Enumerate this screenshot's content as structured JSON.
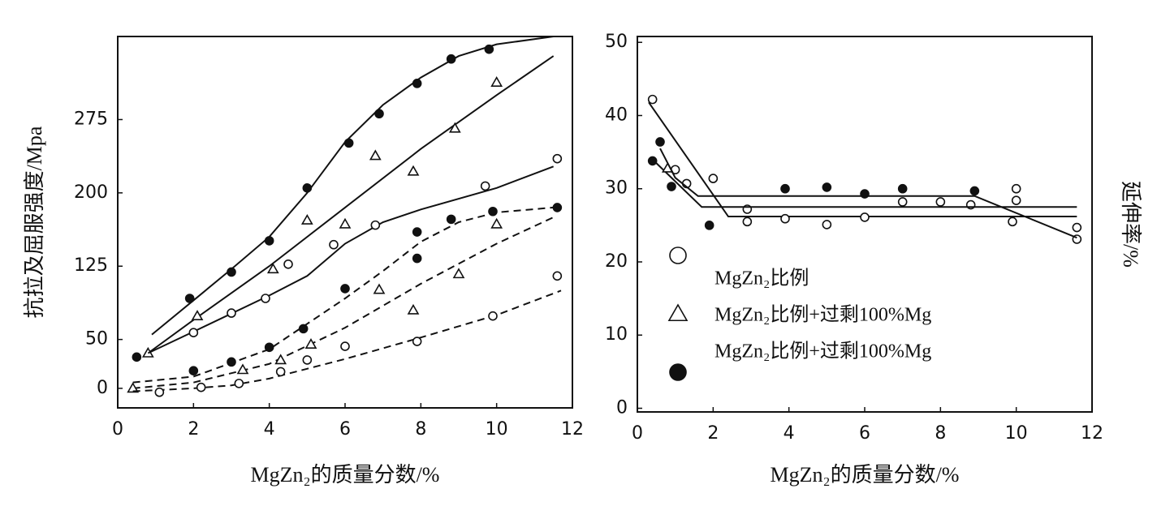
{
  "chart_data": [
    {
      "type": "scatter",
      "xlabel": "MgZn₂的质量分数/%",
      "ylabel": "抗拉及屈服强度/Mpa",
      "ylabel_side": "left",
      "xlim": [
        0,
        12
      ],
      "xticks": [
        0,
        2,
        4,
        6,
        8,
        10,
        12
      ],
      "ylim": [
        -20,
        360
      ],
      "yticks": [
        0,
        50,
        125,
        200,
        275
      ],
      "series": [
        {
          "marker": "circle-filled",
          "color": "#111111",
          "dash": false,
          "x": [
            0.5,
            1.9,
            3.0,
            4.0,
            5.0,
            6.1,
            6.9,
            7.9,
            8.8,
            9.8
          ],
          "values": [
            32,
            92,
            119,
            151,
            205,
            251,
            281,
            312,
            337,
            347
          ],
          "fit_x": [
            0.9,
            2,
            3,
            4,
            5,
            6,
            7,
            8,
            9,
            10,
            11.5
          ],
          "fit_values": [
            55,
            90,
            122,
            155,
            200,
            252,
            290,
            318,
            340,
            352,
            360
          ]
        },
        {
          "marker": "triangle-open",
          "color": "#111111",
          "dash": false,
          "x": [
            0.8,
            2.1,
            4.1,
            5.0,
            6.0,
            6.8,
            7.8,
            8.9,
            10.0
          ],
          "values": [
            36,
            74,
            122,
            172,
            168,
            238,
            222,
            266,
            313
          ],
          "fit_x": [
            0.8,
            2,
            4,
            6,
            8,
            10,
            11.5
          ],
          "fit_values": [
            36,
            70,
            125,
            185,
            245,
            300,
            340
          ]
        },
        {
          "marker": "circle-open",
          "color": "#111111",
          "dash": false,
          "x": [
            2.0,
            3.0,
            3.9,
            4.5,
            5.7,
            6.8,
            9.7,
            11.6
          ],
          "values": [
            57,
            77,
            92,
            127,
            147,
            167,
            207,
            235
          ],
          "fit_x": [
            0.8,
            2,
            4,
            5,
            6,
            7,
            8,
            10,
            11.5
          ],
          "fit_values": [
            36,
            58,
            95,
            115,
            148,
            170,
            183,
            205,
            227
          ]
        },
        {
          "marker": "circle-filled",
          "color": "#111111",
          "dash": true,
          "x": [
            2.0,
            3.0,
            4.0,
            4.9,
            6.0,
            7.9,
            7.9,
            8.8,
            9.9,
            11.6
          ],
          "values": [
            18,
            27,
            42,
            61,
            102,
            133,
            160,
            173,
            181,
            185
          ],
          "fit_x": [
            0.4,
            2,
            4,
            6,
            7,
            8,
            9,
            10,
            11.5
          ],
          "fit_values": [
            6,
            12,
            40,
            92,
            120,
            150,
            170,
            180,
            185
          ]
        },
        {
          "marker": "triangle-open",
          "color": "#111111",
          "dash": true,
          "x": [
            0.4,
            3.3,
            4.3,
            5.1,
            6.9,
            7.8,
            9.0,
            10.0
          ],
          "values": [
            0,
            19,
            29,
            45,
            101,
            80,
            117,
            168
          ],
          "fit_x": [
            0.4,
            2,
            4,
            6,
            8,
            10,
            11.5
          ],
          "fit_values": [
            0,
            6,
            25,
            62,
            107,
            148,
            175
          ]
        },
        {
          "marker": "circle-open",
          "color": "#111111",
          "dash": true,
          "x": [
            1.1,
            2.2,
            3.2,
            4.3,
            5.0,
            6.0,
            7.9,
            9.9,
            11.6
          ],
          "values": [
            -4,
            1,
            5,
            17,
            29,
            43,
            48,
            74,
            115
          ],
          "fit_x": [
            0.4,
            2,
            3,
            4,
            6,
            8,
            10,
            11.7
          ],
          "fit_values": [
            -3,
            0,
            3,
            10,
            30,
            52,
            75,
            100
          ]
        }
      ]
    },
    {
      "type": "scatter",
      "xlabel": "MgZn₂的质量分数/%",
      "ylabel": "延伸率/%",
      "ylabel_side": "right",
      "legend_loc": "center-left",
      "xlim": [
        0,
        12
      ],
      "xticks": [
        0,
        2,
        4,
        6,
        8,
        10,
        12
      ],
      "ylim": [
        -0.5,
        50.8
      ],
      "yticks": [
        0,
        10,
        20,
        30,
        40,
        50
      ],
      "series": [
        {
          "name": "MgZn₂比例",
          "marker": "circle-open",
          "color": "#111111",
          "dash": false,
          "x": [
            0.4,
            1.0,
            1.3,
            2.0,
            2.9,
            2.9,
            3.9,
            5.0,
            6.0,
            7.0,
            8.0,
            8.8,
            9.9,
            10.0,
            10.0,
            11.6,
            11.6
          ],
          "values": [
            42.2,
            32.6,
            30.7,
            31.4,
            27.2,
            25.5,
            25.9,
            25.1,
            26.1,
            28.2,
            28.2,
            27.8,
            25.5,
            30.0,
            28.4,
            24.7,
            23.1
          ],
          "fit_x": [
            0.3,
            2.4,
            11.6
          ],
          "fit_values": [
            41.8,
            26.2,
            26.2
          ]
        },
        {
          "name": "MgZn₂比例+过剩100%Mg",
          "marker": "triangle-open",
          "color": "#111111",
          "dash": false,
          "x": [
            0.8
          ],
          "values": [
            32.8
          ],
          "fit_x": [
            0.5,
            1.7,
            11.6
          ],
          "fit_values": [
            33.5,
            27.5,
            27.5
          ]
        },
        {
          "name": "MgZn₂比例+过剩100%Mg",
          "marker": "circle-filled",
          "color": "#111111",
          "dash": false,
          "x": [
            0.4,
            0.6,
            0.9,
            1.9,
            3.9,
            5.0,
            6.0,
            7.0,
            8.9
          ],
          "values": [
            33.8,
            36.4,
            30.3,
            25.0,
            30.0,
            30.2,
            29.3,
            30.0,
            29.7
          ],
          "fit_x": [
            0.6,
            1.0,
            1.6,
            8.9,
            11.6
          ],
          "fit_values": [
            35.5,
            31.5,
            29.0,
            29.0,
            23.3
          ]
        }
      ]
    }
  ]
}
